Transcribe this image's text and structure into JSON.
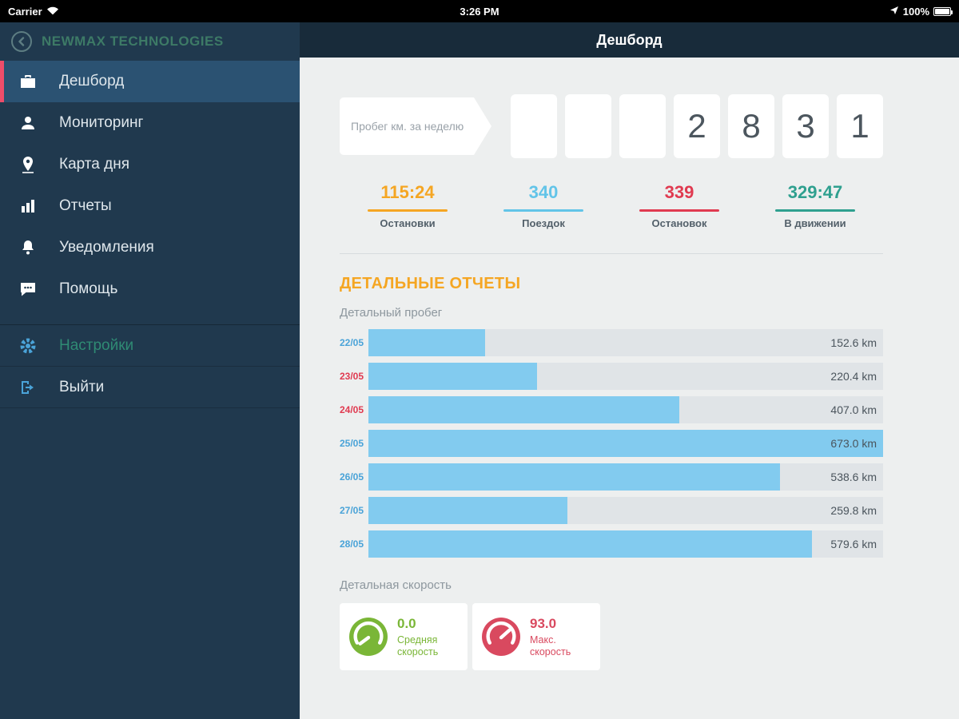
{
  "status_bar": {
    "carrier": "Carrier",
    "time": "3:26 PM",
    "battery": "100%"
  },
  "sidebar": {
    "company": "NEWMAX TECHNOLOGIES",
    "items": [
      {
        "label": "Дешборд",
        "icon": "briefcase-icon",
        "active": true
      },
      {
        "label": "Мониторинг",
        "icon": "monitoring-icon",
        "active": false
      },
      {
        "label": "Карта дня",
        "icon": "map-pin-icon",
        "active": false
      },
      {
        "label": "Отчеты",
        "icon": "bar-chart-icon",
        "active": false
      },
      {
        "label": "Уведомления",
        "icon": "bell-icon",
        "active": false
      },
      {
        "label": "Помощь",
        "icon": "chat-icon",
        "active": false
      }
    ],
    "footer_items": [
      {
        "label": "Настройки",
        "icon": "gear-icon"
      },
      {
        "label": "Выйти",
        "icon": "logout-icon"
      }
    ]
  },
  "header": {
    "title": "Дешборд"
  },
  "odometer": {
    "label": "Пробег км. за неделю",
    "digits": [
      "",
      "",
      "",
      "2",
      "8",
      "3",
      "1"
    ]
  },
  "stats": [
    {
      "value": "115:24",
      "label": "Остановки",
      "color": "#f5a623"
    },
    {
      "value": "340",
      "label": "Поездок",
      "color": "#62c4e8"
    },
    {
      "value": "339",
      "label": "Остановок",
      "color": "#e03a50"
    },
    {
      "value": "329:47",
      "label": "В движении",
      "color": "#2fa08f"
    }
  ],
  "reports": {
    "section_title": "ДЕТАЛЬНЫЕ ОТЧЕТЫ",
    "mileage_title": "Детальный пробег",
    "speed_title": "Детальная скорость"
  },
  "chart_data": {
    "type": "bar",
    "title": "Детальный пробег",
    "categories": [
      "22/05",
      "23/05",
      "24/05",
      "25/05",
      "26/05",
      "27/05",
      "28/05"
    ],
    "values": [
      152.6,
      220.4,
      407.0,
      673.0,
      538.6,
      259.8,
      579.6
    ],
    "value_labels": [
      "152.6 km",
      "220.4 km",
      "407.0 km",
      "673.0 km",
      "538.6 km",
      "259.8 km",
      "579.6 km"
    ],
    "category_colors": [
      "#4aa3d8",
      "#e03a50",
      "#e03a50",
      "#4aa3d8",
      "#4aa3d8",
      "#4aa3d8",
      "#4aa3d8"
    ],
    "xlim": [
      0,
      673.0
    ],
    "bar_color": "#82cbef",
    "track_color": "#e0e4e7",
    "orientation": "horizontal",
    "grid": false,
    "legend": false
  },
  "speed_cards": [
    {
      "value": "0.0",
      "label": "Средняя скорость",
      "color": "#7ab637"
    },
    {
      "value": "93.0",
      "label": "Макс. скорость",
      "color": "#d9495f"
    }
  ]
}
